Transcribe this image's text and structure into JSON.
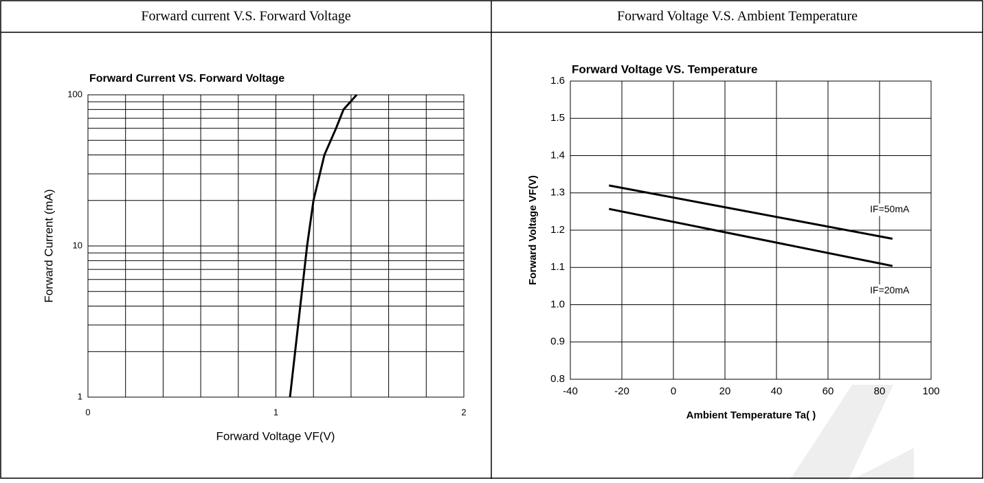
{
  "headers": [
    "Forward current V.S. Forward Voltage",
    "Forward Voltage V.S. Ambient Temperature"
  ],
  "chart_data": [
    {
      "type": "line",
      "title": "Forward Current VS. Forward Voltage",
      "x_label": "Forward Voltage VF(V)",
      "y_label": "Forward Current (mA)",
      "xlim": [
        0,
        2
      ],
      "xticks": [
        0,
        1,
        2
      ],
      "x_minor_ticks": [
        0.2,
        0.4,
        0.6,
        0.8,
        1.2,
        1.4,
        1.6,
        1.8
      ],
      "ylim": [
        1,
        100
      ],
      "yticks": [
        1,
        10,
        100
      ],
      "y_minor_ticks": [
        2,
        3,
        4,
        5,
        6,
        7,
        8,
        9,
        20,
        30,
        40,
        50,
        60,
        70,
        80,
        90
      ],
      "y_log": true,
      "grid": true,
      "series": [
        {
          "color": "#000000",
          "x": [
            1.075,
            1.166,
            1.2,
            1.258,
            1.32,
            1.36,
            1.43
          ],
          "values": [
            1,
            10,
            20,
            40,
            60,
            80,
            100
          ]
        }
      ]
    },
    {
      "type": "line",
      "title": "Forward Voltage VS. Temperature",
      "x_label": "Ambient Temperature Ta(    )",
      "y_label": "Forward Voltage VF(V)",
      "xlim": [
        -40,
        100
      ],
      "xticks": [
        -40,
        -20,
        0,
        20,
        40,
        60,
        80,
        100
      ],
      "ylim": [
        0.8,
        1.6
      ],
      "yticks": [
        {
          "value": 0.8,
          "label": "0.8"
        },
        0.9,
        {
          "value": 1.0,
          "label": "1.0"
        },
        1.1,
        1.2,
        1.3,
        1.4,
        1.5,
        1.6
      ],
      "y_log": false,
      "grid": true,
      "series": [
        {
          "name": "IF=50mA",
          "color": "#000000",
          "x": [
            -25,
            85
          ],
          "values": [
            1.32,
            1.177
          ]
        },
        {
          "name": "IF=20mA",
          "color": "#000000",
          "x": [
            -25,
            85
          ],
          "values": [
            1.257,
            1.104
          ]
        }
      ]
    }
  ]
}
